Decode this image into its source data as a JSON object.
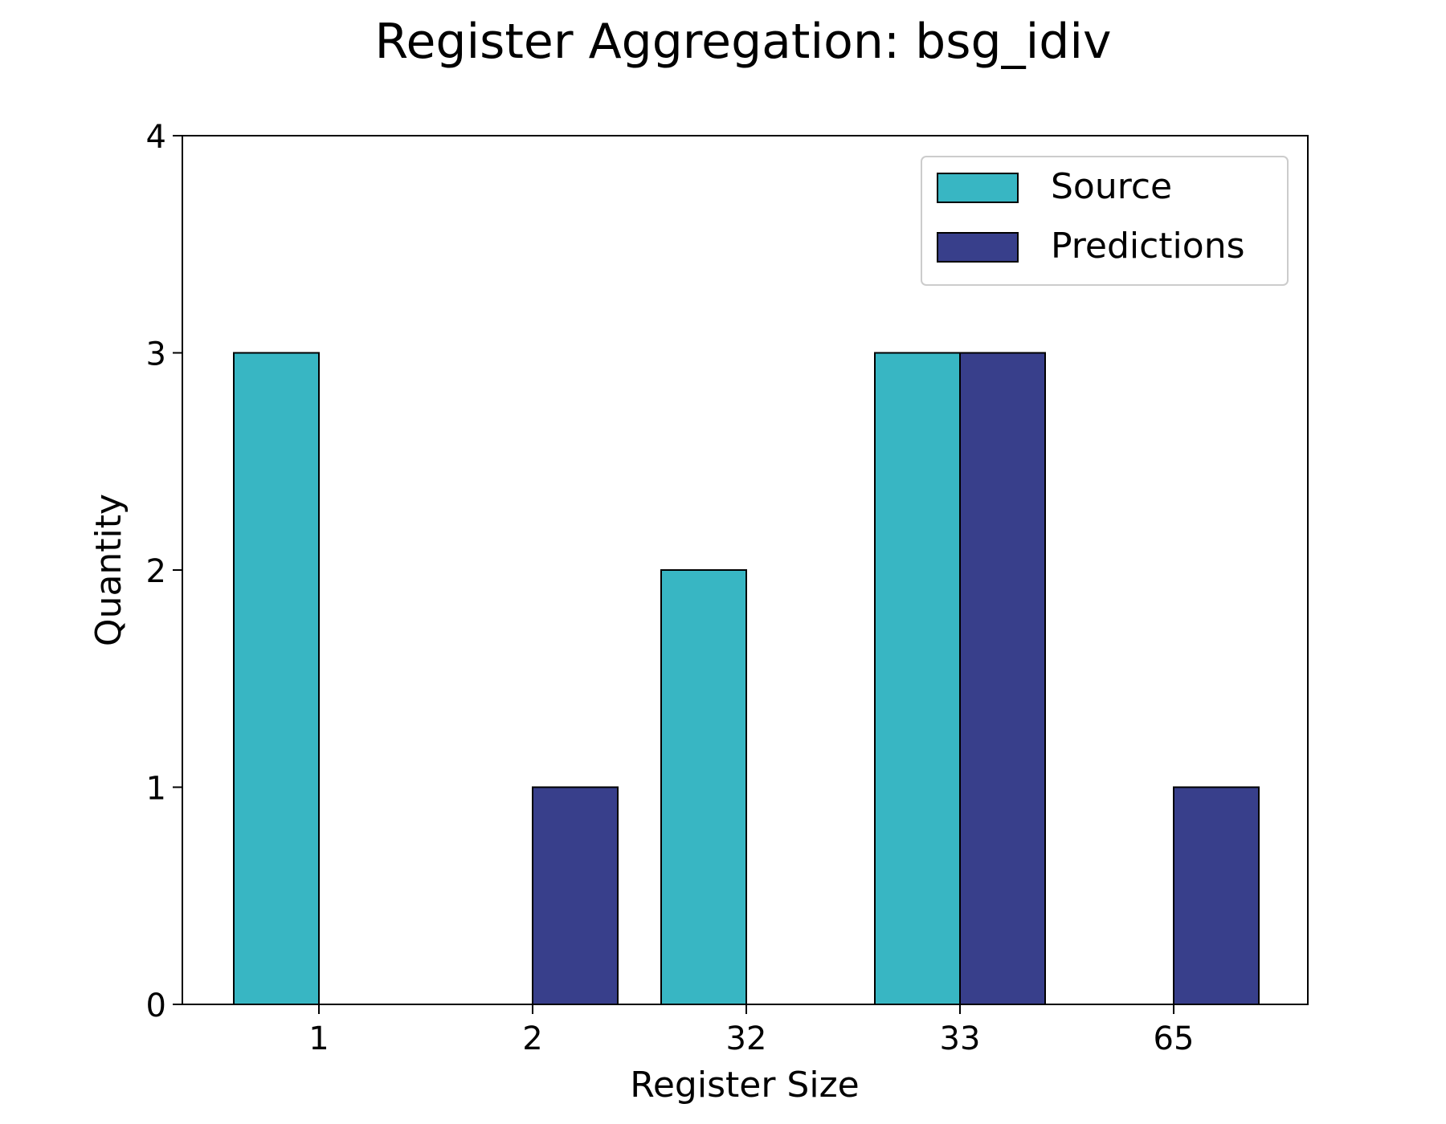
{
  "chart_data": {
    "type": "bar",
    "title": "Register Aggregation: bsg_idiv",
    "xlabel": "Register Size",
    "ylabel": "Quantity",
    "categories": [
      "1",
      "2",
      "32",
      "33",
      "65"
    ],
    "series": [
      {
        "name": "Source",
        "color": "#38b6c3",
        "values": [
          3,
          0,
          2,
          3,
          0
        ]
      },
      {
        "name": "Predictions",
        "color": "#383f8b",
        "values": [
          0,
          1,
          0,
          3,
          1
        ]
      }
    ],
    "ylim": [
      0,
      4
    ],
    "yticks": [
      0,
      1,
      2,
      3,
      4
    ],
    "grid": false,
    "legend_position": "top-right"
  }
}
